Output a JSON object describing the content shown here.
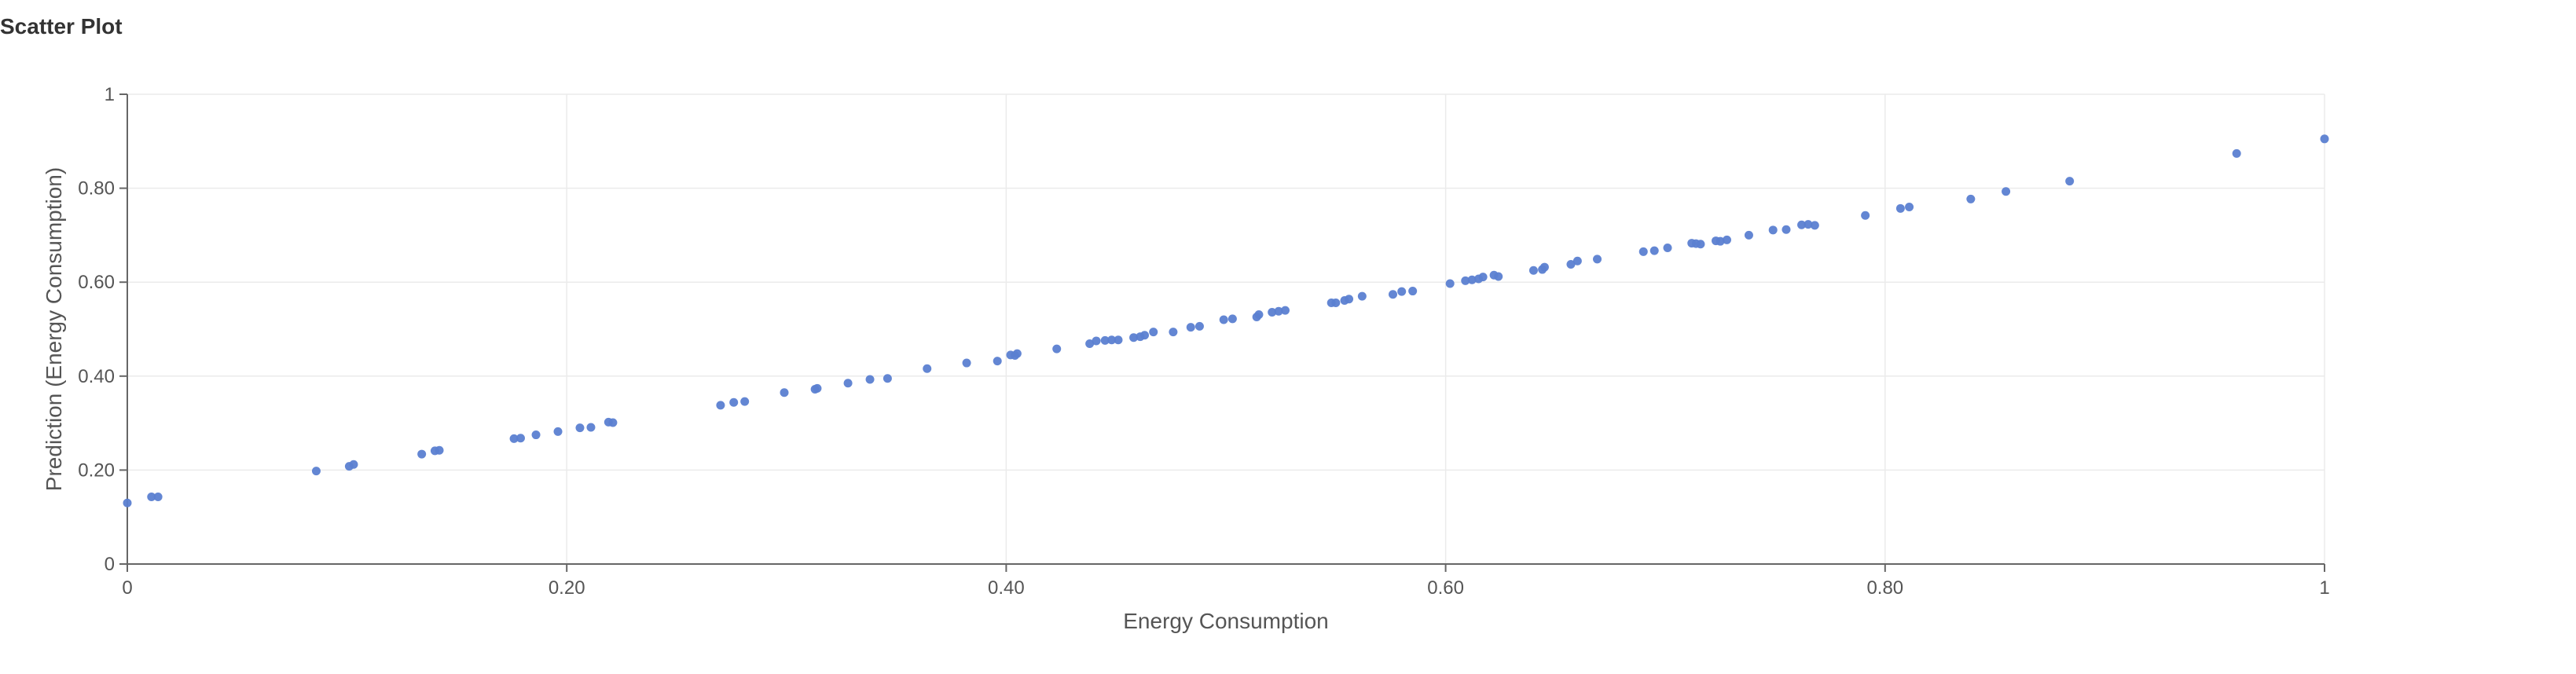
{
  "title": "Scatter Plot",
  "colors": {
    "point": "#5b7fd1"
  },
  "chart_data": {
    "type": "scatter",
    "title": "Scatter Plot",
    "xlabel": "Energy Consumption",
    "ylabel": "Prediction (Energy Consumption)",
    "xlim": [
      0,
      1
    ],
    "ylim": [
      0,
      1
    ],
    "grid": true,
    "legend": "none",
    "x_ticks": [
      0,
      0.2,
      0.4,
      0.6,
      0.8,
      1
    ],
    "x_tick_labels": [
      "0",
      "0.20",
      "0.40",
      "0.60",
      "0.80",
      "1"
    ],
    "y_ticks": [
      0,
      0.2,
      0.4,
      0.6,
      0.8,
      1
    ],
    "y_tick_labels": [
      "0",
      "0.20",
      "0.40",
      "0.60",
      "0.80",
      "1"
    ],
    "series": [
      {
        "points": [
          [
            0.0,
            0.13
          ],
          [
            0.011,
            0.143
          ],
          [
            0.014,
            0.143
          ],
          [
            0.086,
            0.198
          ],
          [
            0.101,
            0.208
          ],
          [
            0.103,
            0.212
          ],
          [
            0.134,
            0.234
          ],
          [
            0.14,
            0.241
          ],
          [
            0.142,
            0.242
          ],
          [
            0.176,
            0.267
          ],
          [
            0.179,
            0.268
          ],
          [
            0.186,
            0.275
          ],
          [
            0.196,
            0.282
          ],
          [
            0.206,
            0.29
          ],
          [
            0.211,
            0.291
          ],
          [
            0.219,
            0.302
          ],
          [
            0.221,
            0.301
          ],
          [
            0.27,
            0.338
          ],
          [
            0.276,
            0.344
          ],
          [
            0.281,
            0.346
          ],
          [
            0.299,
            0.365
          ],
          [
            0.313,
            0.372
          ],
          [
            0.314,
            0.374
          ],
          [
            0.328,
            0.385
          ],
          [
            0.338,
            0.393
          ],
          [
            0.346,
            0.395
          ],
          [
            0.364,
            0.416
          ],
          [
            0.382,
            0.428
          ],
          [
            0.396,
            0.432
          ],
          [
            0.402,
            0.445
          ],
          [
            0.404,
            0.444
          ],
          [
            0.405,
            0.448
          ],
          [
            0.423,
            0.458
          ],
          [
            0.438,
            0.469
          ],
          [
            0.441,
            0.475
          ],
          [
            0.445,
            0.476
          ],
          [
            0.448,
            0.477
          ],
          [
            0.451,
            0.477
          ],
          [
            0.458,
            0.482
          ],
          [
            0.461,
            0.484
          ],
          [
            0.463,
            0.487
          ],
          [
            0.467,
            0.494
          ],
          [
            0.476,
            0.494
          ],
          [
            0.484,
            0.504
          ],
          [
            0.488,
            0.506
          ],
          [
            0.499,
            0.52
          ],
          [
            0.503,
            0.522
          ],
          [
            0.514,
            0.526
          ],
          [
            0.515,
            0.531
          ],
          [
            0.521,
            0.536
          ],
          [
            0.524,
            0.538
          ],
          [
            0.527,
            0.54
          ],
          [
            0.548,
            0.556
          ],
          [
            0.55,
            0.556
          ],
          [
            0.554,
            0.561
          ],
          [
            0.556,
            0.564
          ],
          [
            0.562,
            0.57
          ],
          [
            0.576,
            0.574
          ],
          [
            0.58,
            0.58
          ],
          [
            0.585,
            0.581
          ],
          [
            0.602,
            0.597
          ],
          [
            0.609,
            0.603
          ],
          [
            0.612,
            0.605
          ],
          [
            0.615,
            0.607
          ],
          [
            0.617,
            0.611
          ],
          [
            0.622,
            0.615
          ],
          [
            0.624,
            0.612
          ],
          [
            0.64,
            0.625
          ],
          [
            0.644,
            0.627
          ],
          [
            0.645,
            0.632
          ],
          [
            0.657,
            0.638
          ],
          [
            0.66,
            0.645
          ],
          [
            0.669,
            0.649
          ],
          [
            0.69,
            0.665
          ],
          [
            0.695,
            0.667
          ],
          [
            0.701,
            0.673
          ],
          [
            0.712,
            0.683
          ],
          [
            0.714,
            0.682
          ],
          [
            0.716,
            0.681
          ],
          [
            0.723,
            0.688
          ],
          [
            0.725,
            0.687
          ],
          [
            0.728,
            0.69
          ],
          [
            0.738,
            0.7
          ],
          [
            0.749,
            0.711
          ],
          [
            0.755,
            0.712
          ],
          [
            0.762,
            0.722
          ],
          [
            0.765,
            0.723
          ],
          [
            0.768,
            0.721
          ],
          [
            0.791,
            0.742
          ],
          [
            0.807,
            0.757
          ],
          [
            0.811,
            0.76
          ],
          [
            0.839,
            0.777
          ],
          [
            0.855,
            0.793
          ],
          [
            0.884,
            0.815
          ],
          [
            0.96,
            0.874
          ],
          [
            1.0,
            0.905
          ]
        ]
      }
    ]
  }
}
